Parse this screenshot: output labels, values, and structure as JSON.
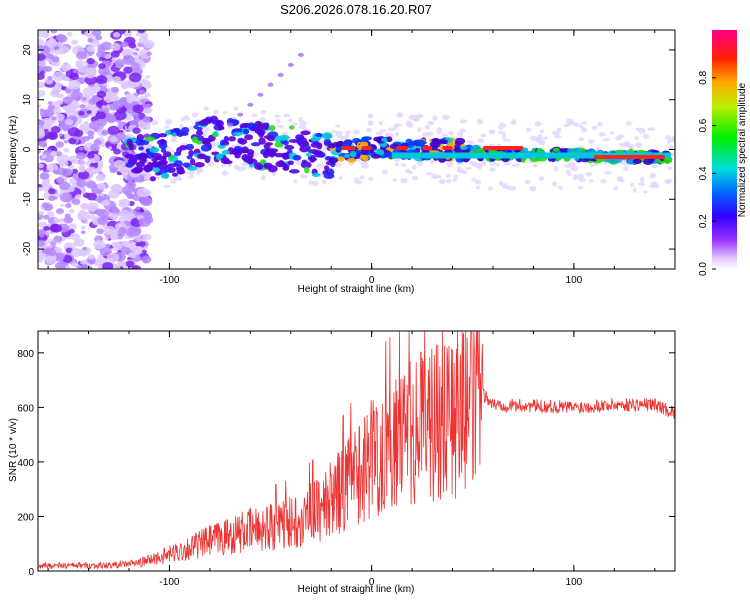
{
  "title": "S206.2026.078.16.20.R07",
  "chart_data": [
    {
      "type": "heatmap",
      "xlabel": "Height of straight line (km)",
      "ylabel": "Frequency (Hz)",
      "xlim": [
        -165,
        150
      ],
      "ylim": [
        -24,
        24
      ],
      "xticks": [
        "-100",
        "0",
        "100"
      ],
      "yticks": [
        "-20",
        "-10",
        "0",
        "10",
        "20"
      ],
      "colorbar": {
        "label": "Normalized spectral amplitude",
        "range": [
          0,
          1
        ],
        "ticks": [
          "0.0",
          "0.2",
          "0.4",
          "0.6",
          "0.8"
        ],
        "colors": [
          "#ffffff",
          "#cc99ff",
          "#7700ee",
          "#0000ff",
          "#00dddd",
          "#00dd00",
          "#dddd00",
          "#ff3300",
          "#ff0066"
        ]
      },
      "ridge": {
        "description_points_x": [
          -120,
          -100,
          -80,
          -60,
          -40,
          -20,
          0,
          20,
          40,
          60,
          80,
          100,
          120,
          148
        ],
        "description_points_freq": [
          -2,
          -1,
          2,
          1,
          0,
          -1,
          0.5,
          0,
          0,
          -1,
          -1,
          -1,
          -1.5,
          -1.5
        ]
      }
    },
    {
      "type": "line",
      "xlabel": "Height of straight line (km)",
      "ylabel": "SNR (10 * v/v)",
      "xlim": [
        -165,
        150
      ],
      "ylim": [
        0,
        880
      ],
      "xticks": [
        "-100",
        "0",
        "100"
      ],
      "yticks": [
        "0",
        "200",
        "400",
        "600",
        "800"
      ],
      "series": [
        {
          "name": "SNR",
          "color": "#ee3333",
          "envelope_x": [
            -165,
            -130,
            -115,
            -100,
            -80,
            -60,
            -40,
            -25,
            -10,
            0,
            10,
            20,
            30,
            40,
            50,
            55,
            60,
            80,
            100,
            120,
            140,
            150
          ],
          "envelope_y": [
            20,
            20,
            30,
            60,
            110,
            150,
            180,
            230,
            330,
            420,
            460,
            500,
            560,
            580,
            620,
            650,
            610,
            605,
            600,
            610,
            610,
            580
          ]
        }
      ]
    }
  ]
}
